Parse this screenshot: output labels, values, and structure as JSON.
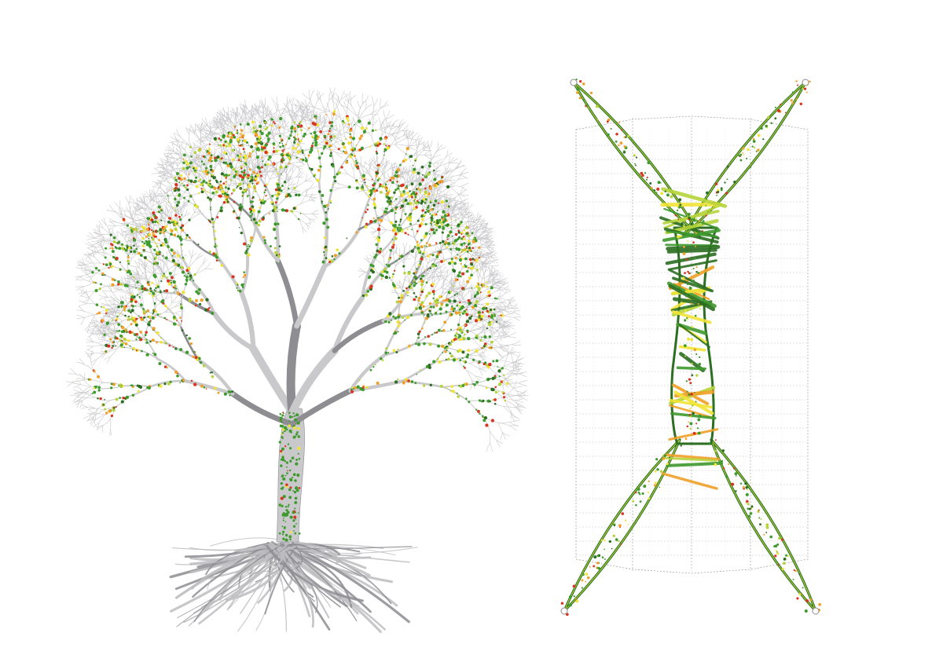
{
  "figure": {
    "left_panel": {
      "subject": "tree-illustration"
    },
    "right_panel": {
      "subject": "x-shaped-branching-column"
    }
  },
  "palette": {
    "background": "#ffffff",
    "branch_grey": "#c9c9cc",
    "branch_dark_grey": "#8d8d92",
    "root_grey": "#bdbdc0",
    "green": "#3f9a2e",
    "dark_green": "#2c6e22",
    "yellow_green": "#b6d43a",
    "yellow": "#f2e437",
    "orange": "#f0a028",
    "red": "#d9341f",
    "grid_line": "#9a9a9a"
  }
}
